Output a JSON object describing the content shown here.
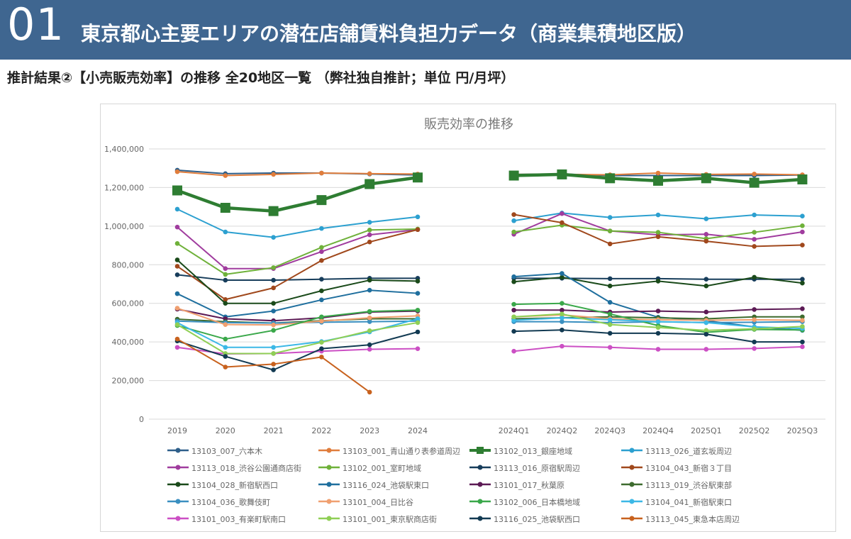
{
  "header": {
    "number": "01",
    "title": "東京都心主要エリアの潜在店舗賃料負担力データ（商業集積地区版）"
  },
  "subtitle": "推計結果②【小売販売効率】の推移 全20地区一覧 （弊社独自推計；単位 円/月坪）",
  "chart_data": {
    "type": "line",
    "title": "販売効率の推移",
    "xlabel": "",
    "ylabel": "",
    "ylim": [
      0,
      1400000
    ],
    "yticks": [
      "0",
      "200,000",
      "400,000",
      "600,000",
      "800,000",
      "1,000,000",
      "1,200,000",
      "1,400,000"
    ],
    "grid": "horizontal",
    "legend_position": "bottom",
    "categories": [
      "2019",
      "2020",
      "2021",
      "2022",
      "2023",
      "2024",
      "",
      "2024Q1",
      "2024Q2",
      "2024Q3",
      "2024Q4",
      "2025Q1",
      "2025Q2",
      "2025Q3"
    ],
    "series": [
      {
        "name": "13103_007_六本木",
        "color": "#2e5f8a",
        "width": 2,
        "values": [
          1290000,
          1272000,
          1275000,
          1275000,
          1270000,
          1265000,
          null,
          1268000,
          1270000,
          1262000,
          1262000,
          1262000,
          1262000,
          1265000
        ]
      },
      {
        "name": "13103_001_青山通り表参道周辺",
        "color": "#e07d3c",
        "width": 2,
        "values": [
          1282000,
          1262000,
          1268000,
          1275000,
          1272000,
          1270000,
          null,
          1268000,
          1268000,
          1266000,
          1275000,
          1268000,
          1270000,
          1266000
        ]
      },
      {
        "name": "13102_013_銀座地域",
        "color": "#2e7d32",
        "width": 4.5,
        "bigmarker": true,
        "values": [
          1185000,
          1095000,
          1078000,
          1135000,
          1218000,
          1252000,
          null,
          1262000,
          1268000,
          1248000,
          1235000,
          1248000,
          1225000,
          1242000
        ]
      },
      {
        "name": "13113_026_道玄坂周辺",
        "color": "#2ca0d0",
        "width": 2,
        "values": [
          1088000,
          970000,
          942000,
          988000,
          1020000,
          1048000,
          null,
          1028000,
          1068000,
          1045000,
          1058000,
          1038000,
          1058000,
          1052000
        ]
      },
      {
        "name": "13113_018_渋谷公園通商店街",
        "color": "#a03c9e",
        "width": 2,
        "values": [
          995000,
          780000,
          780000,
          868000,
          955000,
          982000,
          null,
          958000,
          1065000,
          975000,
          955000,
          958000,
          932000,
          970000
        ]
      },
      {
        "name": "13102_001_室町地域",
        "color": "#6fb13a",
        "width": 2,
        "values": [
          910000,
          750000,
          785000,
          890000,
          980000,
          985000,
          null,
          970000,
          1005000,
          975000,
          968000,
          935000,
          968000,
          1002000
        ]
      },
      {
        "name": "13113_016_原宿駅周辺",
        "color": "#173d5b",
        "width": 2,
        "values": [
          748000,
          720000,
          720000,
          725000,
          730000,
          730000,
          null,
          730000,
          730000,
          728000,
          728000,
          725000,
          725000,
          725000
        ]
      },
      {
        "name": "13104_043_新宿３丁目",
        "color": "#a0481c",
        "width": 2,
        "values": [
          792000,
          620000,
          680000,
          822000,
          918000,
          982000,
          null,
          1060000,
          1018000,
          908000,
          945000,
          922000,
          895000,
          902000
        ]
      },
      {
        "name": "13104_028_新宿駅西口",
        "color": "#1a4a1a",
        "width": 2,
        "values": [
          825000,
          600000,
          600000,
          665000,
          720000,
          715000,
          null,
          712000,
          735000,
          690000,
          715000,
          690000,
          735000,
          705000
        ]
      },
      {
        "name": "13116_024_池袋駅東口",
        "color": "#1f6f9e",
        "width": 2,
        "values": [
          650000,
          530000,
          560000,
          618000,
          668000,
          652000,
          null,
          738000,
          755000,
          605000,
          528000,
          510000,
          478000,
          460000
        ]
      },
      {
        "name": "13101_017_秋葉原",
        "color": "#5c1a55",
        "width": 2,
        "values": [
          570000,
          520000,
          510000,
          525000,
          555000,
          560000,
          null,
          565000,
          565000,
          555000,
          560000,
          555000,
          568000,
          572000
        ]
      },
      {
        "name": "13113_019_渋谷駅東部",
        "color": "#3d6b2e",
        "width": 2,
        "values": [
          518000,
          505000,
          498000,
          510000,
          520000,
          520000,
          null,
          520000,
          525000,
          530000,
          525000,
          520000,
          530000,
          530000
        ]
      },
      {
        "name": "13104_036_歌舞伎町",
        "color": "#3a8fc0",
        "width": 2,
        "values": [
          508000,
          500000,
          498000,
          502000,
          505000,
          508000,
          null,
          505000,
          505000,
          500000,
          505000,
          500000,
          502000,
          505000
        ]
      },
      {
        "name": "13101_004_日比谷",
        "color": "#f0a070",
        "width": 2,
        "values": [
          575000,
          490000,
          488000,
          508000,
          525000,
          535000,
          null,
          530000,
          540000,
          520000,
          515000,
          512000,
          515000,
          512000
        ]
      },
      {
        "name": "13102_006_日本橋地域",
        "color": "#3aa84a",
        "width": 2,
        "values": [
          485000,
          415000,
          460000,
          530000,
          558000,
          565000,
          null,
          595000,
          600000,
          545000,
          485000,
          450000,
          465000,
          462000
        ]
      },
      {
        "name": "13104_041_新宿駅東口",
        "color": "#3cb8e6",
        "width": 2,
        "values": [
          500000,
          372000,
          372000,
          402000,
          452000,
          520000,
          null,
          512000,
          525000,
          515000,
          505000,
          500000,
          478000,
          470000
        ]
      },
      {
        "name": "13101_003_有楽町駅南口",
        "color": "#cc4fc4",
        "width": 2,
        "values": [
          372000,
          338000,
          340000,
          352000,
          362000,
          365000,
          null,
          352000,
          378000,
          372000,
          362000,
          362000,
          366000,
          375000
        ]
      },
      {
        "name": "13101_001_東京駅商店街",
        "color": "#8fcf55",
        "width": 2,
        "values": [
          490000,
          340000,
          340000,
          398000,
          458000,
          500000,
          null,
          530000,
          545000,
          490000,
          475000,
          460000,
          468000,
          480000
        ]
      },
      {
        "name": "13116_025_池袋駅西口",
        "color": "#123a52",
        "width": 2,
        "values": [
          405000,
          325000,
          255000,
          365000,
          385000,
          452000,
          null,
          455000,
          462000,
          445000,
          445000,
          440000,
          400000,
          400000
        ]
      },
      {
        "name": "13113_045_東急本店周辺",
        "color": "#c8621e",
        "width": 2,
        "values": [
          415000,
          270000,
          285000,
          322000,
          140000,
          null,
          null,
          null,
          null,
          null,
          null,
          null,
          null,
          null
        ]
      }
    ]
  }
}
